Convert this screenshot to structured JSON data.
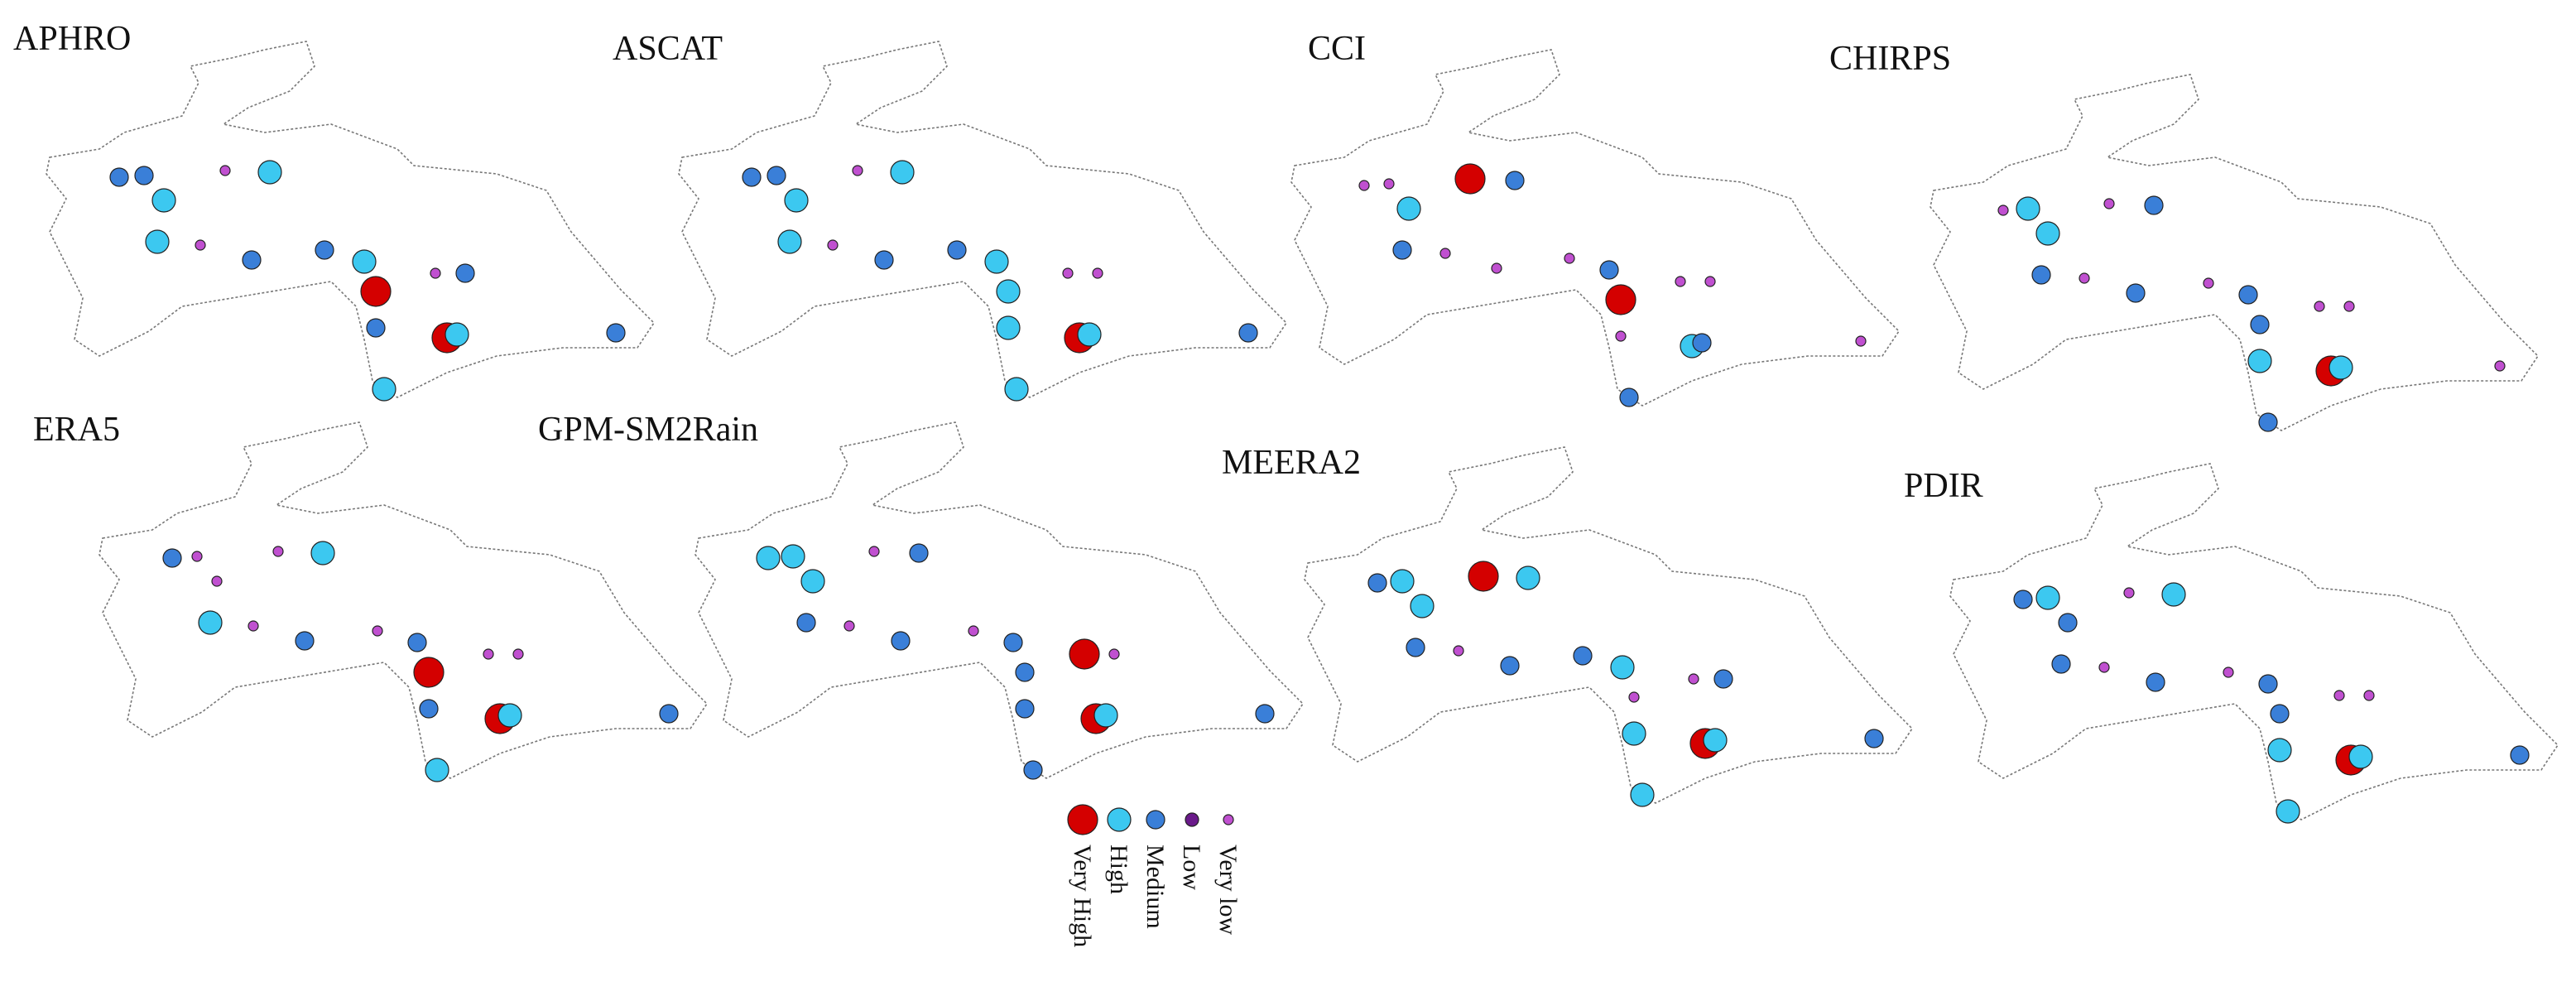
{
  "legend": [
    "Very High",
    "High",
    "Medium",
    "Low",
    "Very low"
  ],
  "panels": [
    {
      "title": "APHRO",
      "stations": [
        "Medium",
        "Medium",
        "High",
        "High",
        "Very low",
        "Very low",
        "High",
        "Medium",
        "Medium",
        "High",
        "Very low",
        "Medium",
        "Very High",
        "Medium",
        "Very High",
        "High",
        "Medium",
        "High"
      ]
    },
    {
      "title": "ASCAT",
      "stations": [
        "Medium",
        "Medium",
        "High",
        "High",
        "Very low",
        "Very low",
        "High",
        "Medium",
        "Medium",
        "High",
        "Very low",
        "Very low",
        "High",
        "High",
        "Very High",
        "High",
        "Medium",
        "High"
      ]
    },
    {
      "title": "CCI",
      "stations": [
        "Very low",
        "Very low",
        "High",
        "Medium",
        "Very low",
        "Very High",
        "Medium",
        "Very low",
        "Very low",
        "Medium",
        "Very low",
        "Very low",
        "Very High",
        "Very low",
        "High",
        "Medium",
        "Very low",
        "Medium"
      ]
    },
    {
      "title": "CHIRPS",
      "stations": [
        "Very low",
        "High",
        "High",
        "Medium",
        "Very low",
        "Very low",
        "Medium",
        "Medium",
        "Very low",
        "Medium",
        "Very low",
        "Very low",
        "Medium",
        "High",
        "Very High",
        "Medium",
        "Very low",
        "High"
      ]
    },
    {
      "title": "ERA5",
      "stations": [
        "Medium",
        "Very low",
        "Very low",
        "High",
        "Very low",
        "Very low",
        "High",
        "Medium",
        "Very low",
        "Medium",
        "Very low",
        "Very low",
        "Very High",
        "Medium",
        "Very High",
        "High",
        "Medium",
        "High"
      ]
    },
    {
      "title": "GPM-SM2Rain",
      "stations": [
        "High",
        "High",
        "High",
        "Medium",
        "Very low",
        "Very low",
        "Medium",
        "Medium",
        "Very low",
        "Medium",
        "Very High",
        "Very low",
        "Medium",
        "Medium",
        "Very High",
        "Medium",
        "Medium",
        "High"
      ]
    },
    {
      "title": "MEERA2",
      "stations": [
        "Medium",
        "High",
        "High",
        "Medium",
        "Very low",
        "Very High",
        "High",
        "Medium",
        "Medium",
        "High",
        "Very low",
        "Medium",
        "Very low",
        "High",
        "Very High",
        "High",
        "Medium",
        "High"
      ]
    },
    {
      "title": "PDIR",
      "stations": [
        "Medium",
        "High",
        "Medium",
        "Medium",
        "Very low",
        "Very low",
        "High",
        "Medium",
        "Very low",
        "Medium",
        "Very low",
        "Very low",
        "Medium",
        "High",
        "Very High",
        "High",
        "Medium",
        "High"
      ]
    }
  ]
}
